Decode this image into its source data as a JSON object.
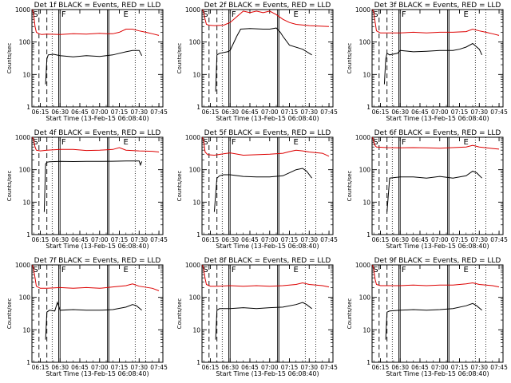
{
  "chart_data": {
    "type": "line",
    "yscale": "log",
    "ylim": [
      1,
      1000
    ],
    "xlim": [
      "06:08:40",
      "07:48:00"
    ],
    "x_tick_labels": [
      "06:15",
      "06:30",
      "06:45",
      "07:00",
      "07:15",
      "07:30",
      "07:45"
    ],
    "y_tick_labels": [
      "1",
      "10",
      "100",
      "1000"
    ],
    "ylabel": "Counts/sec",
    "xlabel": "Start Time (13-Feb-15 06:08:40)",
    "flags": [
      "S",
      "F",
      "E"
    ],
    "colors": {
      "events": "#000000",
      "lld": "#dd0000",
      "axes": "#000000"
    },
    "panels": [
      {
        "title": "Det 1f BLACK = Events, RED = LLD",
        "series": [
          {
            "name": "LLD",
            "color": "#dd0000",
            "x": [
              "06:09",
              "06:10",
              "06:11",
              "06:12",
              "06:14",
              "06:16",
              "06:20",
              "06:30",
              "06:40",
              "06:50",
              "07:00",
              "07:05",
              "07:10",
              "07:15",
              "07:20",
              "07:25",
              "07:30",
              "07:35",
              "07:40",
              "07:45"
            ],
            "y": [
              1000,
              700,
              300,
              200,
              180,
              170,
              175,
              170,
              180,
              175,
              185,
              180,
              180,
              200,
              250,
              250,
              220,
              200,
              180,
              160
            ]
          },
          {
            "name": "Events",
            "color": "#000000",
            "x": [
              "06:19",
              "06:20",
              "06:21",
              "06:25",
              "06:30",
              "06:40",
              "06:50",
              "07:00",
              "07:05",
              "07:10",
              "07:15",
              "07:20",
              "07:25",
              "07:30",
              "07:32"
            ],
            "y": [
              5,
              30,
              40,
              42,
              38,
              35,
              38,
              36,
              38,
              40,
              45,
              50,
              55,
              55,
              38
            ]
          }
        ]
      },
      {
        "title": "Det 2f BLACK = Events, RED = LLD",
        "series": [
          {
            "name": "LLD",
            "color": "#dd0000",
            "x": [
              "06:09",
              "06:10",
              "06:11",
              "06:12",
              "06:14",
              "06:18",
              "06:25",
              "06:30",
              "06:35",
              "06:40",
              "06:45",
              "06:50",
              "06:55",
              "07:00",
              "07:05",
              "07:10",
              "07:15",
              "07:20",
              "07:30",
              "07:45"
            ],
            "y": [
              1000,
              800,
              500,
              350,
              330,
              320,
              330,
              400,
              600,
              900,
              800,
              900,
              800,
              900,
              700,
              500,
              400,
              350,
              320,
              300
            ]
          },
          {
            "name": "Events",
            "color": "#000000",
            "x": [
              "06:19",
              "06:20",
              "06:22",
              "06:28",
              "06:30",
              "06:35",
              "06:38",
              "06:45",
              "06:55",
              "07:00",
              "07:05",
              "07:08",
              "07:10",
              "07:15",
              "07:25",
              "07:32"
            ],
            "y": [
              3,
              40,
              45,
              50,
              55,
              150,
              250,
              260,
              250,
              250,
              270,
              200,
              150,
              80,
              60,
              40
            ]
          }
        ]
      },
      {
        "title": "Det 3f BLACK = Events, RED = LLD",
        "series": [
          {
            "name": "LLD",
            "color": "#dd0000",
            "x": [
              "06:09",
              "06:10",
              "06:11",
              "06:12",
              "06:15",
              "06:20",
              "06:30",
              "06:40",
              "06:50",
              "07:00",
              "07:10",
              "07:20",
              "07:25",
              "07:30",
              "07:35",
              "07:40",
              "07:45"
            ],
            "y": [
              1000,
              800,
              400,
              220,
              190,
              190,
              190,
              200,
              190,
              200,
              200,
              210,
              250,
              220,
              200,
              180,
              160
            ]
          },
          {
            "name": "Events",
            "color": "#000000",
            "x": [
              "06:18",
              "06:19",
              "06:20",
              "06:22",
              "06:28",
              "06:30",
              "06:40",
              "06:50",
              "07:00",
              "07:10",
              "07:15",
              "07:20",
              "07:25",
              "07:30",
              "07:32"
            ],
            "y": [
              5,
              30,
              45,
              40,
              45,
              55,
              50,
              52,
              55,
              55,
              60,
              70,
              90,
              60,
              40
            ]
          }
        ]
      },
      {
        "title": "Det 4f BLACK = Events, RED = LLD",
        "series": [
          {
            "name": "LLD",
            "color": "#dd0000",
            "x": [
              "06:09",
              "06:10",
              "06:11",
              "06:12",
              "06:15",
              "06:20",
              "06:30",
              "06:40",
              "06:50",
              "07:00",
              "07:10",
              "07:15",
              "07:20",
              "07:30",
              "07:40",
              "07:45"
            ],
            "y": [
              1000,
              800,
              500,
              400,
              380,
              400,
              420,
              420,
              390,
              400,
              420,
              480,
              400,
              380,
              370,
              350
            ]
          },
          {
            "name": "Events",
            "color": "#000000",
            "x": [
              "06:18",
              "06:19",
              "06:20",
              "06:22",
              "06:30",
              "06:40",
              "06:50",
              "07:00",
              "07:10",
              "07:20",
              "07:25",
              "07:30",
              "07:31",
              "07:32"
            ],
            "y": [
              5,
              150,
              170,
              175,
              180,
              178,
              180,
              180,
              182,
              185,
              185,
              185,
              140,
              180
            ]
          }
        ]
      },
      {
        "title": "Det 5f BLACK = Events, RED = LLD",
        "series": [
          {
            "name": "LLD",
            "color": "#dd0000",
            "x": [
              "06:09",
              "06:10",
              "06:11",
              "06:13",
              "06:18",
              "06:25",
              "06:30",
              "06:40",
              "06:50",
              "07:00",
              "07:10",
              "07:15",
              "07:20",
              "07:25",
              "07:30",
              "07:40",
              "07:45"
            ],
            "y": [
              1000,
              700,
              350,
              290,
              280,
              310,
              330,
              280,
              290,
              300,
              320,
              360,
              400,
              380,
              350,
              320,
              260
            ]
          },
          {
            "name": "Events",
            "color": "#000000",
            "x": [
              "06:18",
              "06:20",
              "06:22",
              "06:25",
              "06:30",
              "06:40",
              "06:50",
              "07:00",
              "07:10",
              "07:15",
              "07:20",
              "07:25",
              "07:28",
              "07:32"
            ],
            "y": [
              5,
              55,
              65,
              70,
              70,
              62,
              60,
              60,
              65,
              80,
              100,
              110,
              90,
              55
            ]
          }
        ]
      },
      {
        "title": "Det 6f BLACK = Events, RED = LLD",
        "series": [
          {
            "name": "LLD",
            "color": "#dd0000",
            "x": [
              "06:09",
              "06:10",
              "06:11",
              "06:12",
              "06:20",
              "06:30",
              "06:40",
              "06:50",
              "07:00",
              "07:10",
              "07:20",
              "07:25",
              "07:30",
              "07:40",
              "07:45"
            ],
            "y": [
              1000,
              700,
              550,
              500,
              480,
              470,
              480,
              470,
              460,
              480,
              500,
              560,
              500,
              450,
              430
            ]
          },
          {
            "name": "Events",
            "color": "#000000",
            "x": [
              "06:20",
              "06:22",
              "06:30",
              "06:40",
              "06:50",
              "07:00",
              "07:10",
              "07:20",
              "07:25",
              "07:28",
              "07:32"
            ],
            "y": [
              5,
              55,
              60,
              60,
              55,
              62,
              55,
              65,
              90,
              80,
              55
            ]
          }
        ]
      },
      {
        "title": "Det 7f BLACK = Events, RED = LLD",
        "series": [
          {
            "name": "LLD",
            "color": "#dd0000",
            "x": [
              "06:09",
              "06:10",
              "06:11",
              "06:12",
              "06:15",
              "06:20",
              "06:30",
              "06:40",
              "06:50",
              "07:00",
              "07:10",
              "07:20",
              "07:25",
              "07:30",
              "07:40",
              "07:45"
            ],
            "y": [
              1000,
              700,
              400,
              220,
              190,
              190,
              200,
              190,
              200,
              190,
              210,
              230,
              260,
              220,
              190,
              160
            ]
          },
          {
            "name": "Events",
            "color": "#000000",
            "x": [
              "06:19",
              "06:20",
              "06:22",
              "06:26",
              "06:28",
              "06:30",
              "06:40",
              "06:50",
              "07:00",
              "07:10",
              "07:20",
              "07:25",
              "07:28",
              "07:32"
            ],
            "y": [
              5,
              35,
              40,
              38,
              70,
              40,
              42,
              40,
              40,
              42,
              50,
              60,
              55,
              40
            ]
          }
        ]
      },
      {
        "title": "Det 8f BLACK = Events, RED = LLD",
        "series": [
          {
            "name": "LLD",
            "color": "#dd0000",
            "x": [
              "06:09",
              "06:10",
              "06:11",
              "06:12",
              "06:15",
              "06:20",
              "06:30",
              "06:40",
              "06:50",
              "07:00",
              "07:10",
              "07:20",
              "07:25",
              "07:30",
              "07:40",
              "07:45"
            ],
            "y": [
              1000,
              700,
              380,
              250,
              220,
              220,
              230,
              220,
              230,
              220,
              230,
              250,
              280,
              250,
              230,
              210
            ]
          },
          {
            "name": "Events",
            "color": "#000000",
            "x": [
              "06:19",
              "06:20",
              "06:22",
              "06:30",
              "06:40",
              "06:50",
              "07:00",
              "07:10",
              "07:20",
              "07:25",
              "07:28",
              "07:32"
            ],
            "y": [
              5,
              40,
              45,
              45,
              48,
              45,
              48,
              50,
              60,
              70,
              60,
              45
            ]
          }
        ]
      },
      {
        "title": "Det 9f BLACK = Events, RED = LLD",
        "series": [
          {
            "name": "LLD",
            "color": "#dd0000",
            "x": [
              "06:09",
              "06:10",
              "06:11",
              "06:12",
              "06:15",
              "06:20",
              "06:30",
              "06:40",
              "06:50",
              "07:00",
              "07:10",
              "07:20",
              "07:25",
              "07:30",
              "07:40",
              "07:45"
            ],
            "y": [
              1000,
              700,
              350,
              250,
              230,
              230,
              230,
              240,
              230,
              240,
              240,
              260,
              280,
              250,
              230,
              210
            ]
          },
          {
            "name": "Events",
            "color": "#000000",
            "x": [
              "06:19",
              "06:20",
              "06:22",
              "06:30",
              "06:40",
              "06:50",
              "07:00",
              "07:10",
              "07:20",
              "07:25",
              "07:28",
              "07:32"
            ],
            "y": [
              5,
              35,
              38,
              40,
              42,
              40,
              42,
              45,
              55,
              65,
              55,
              40
            ]
          }
        ]
      }
    ]
  }
}
